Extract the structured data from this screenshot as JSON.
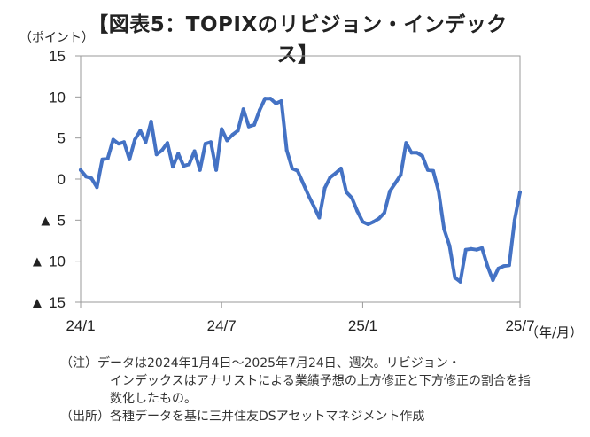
{
  "chart_data": {
    "type": "line",
    "title": "【図表5：TOPIXのリビジョン・インデックス】",
    "ylabel": "（ポイント）",
    "xlabel": "（年/月）",
    "ylim": [
      -15,
      15
    ],
    "yticks": [
      15,
      10,
      5,
      0,
      -5,
      -10,
      -15
    ],
    "ytick_labels": [
      "15",
      "10",
      "5",
      "0",
      "▲ 5",
      "▲ 10",
      "▲ 15"
    ],
    "xlim": [
      0,
      81
    ],
    "xticks": [
      0,
      26,
      52,
      81
    ],
    "xtick_labels": [
      "24/1",
      "24/7",
      "25/1",
      "25/7"
    ],
    "grid": false,
    "color": "#4472C4",
    "series": [
      {
        "name": "TOPIXのリビジョン・インデックス",
        "values": [
          1.1,
          0.3,
          0.1,
          -1.0,
          2.4,
          2.5,
          4.8,
          4.3,
          4.5,
          2.4,
          4.8,
          5.9,
          4.5,
          7.0,
          3.0,
          3.5,
          4.4,
          1.5,
          3.1,
          1.6,
          1.8,
          3.4,
          1.1,
          4.3,
          4.5,
          1.1,
          6.1,
          4.7,
          5.4,
          5.9,
          8.5,
          6.4,
          6.6,
          8.4,
          9.8,
          9.8,
          9.2,
          9.5,
          3.5,
          1.3,
          1.0,
          -0.5,
          -2.0,
          -3.3,
          -4.7,
          -1.1,
          0.2,
          0.7,
          1.3,
          -1.6,
          -2.3,
          -3.9,
          -5.2,
          -5.5,
          -5.2,
          -4.8,
          -4.1,
          -1.5,
          -0.5,
          0.5,
          4.4,
          3.2,
          3.2,
          2.8,
          1.1,
          1.0,
          -1.5,
          -6.1,
          -8.1,
          -12.0,
          -12.5,
          -8.6,
          -8.5,
          -8.6,
          -8.4,
          -10.6,
          -12.3,
          -10.9,
          -10.6,
          -10.5,
          -5.0,
          -1.6
        ]
      }
    ]
  },
  "notes": {
    "note1_line1": "（注）データは2024年1月4日～2025年7月24日、週次。リビジョン・",
    "note1_line2": "インデックスはアナリストによる業績予想の上方修正と下方修正の割合を指数化したもの。",
    "note2": "（出所）各種データを基に三井住友DSアセットマネジメント作成"
  }
}
